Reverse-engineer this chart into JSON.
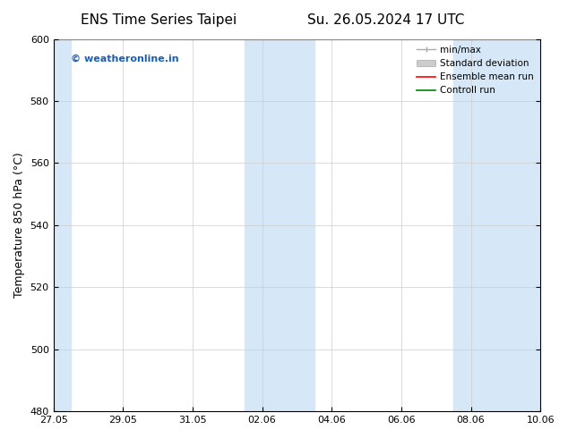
{
  "title_left": "ENS Time Series Taipei",
  "title_right": "Su. 26.05.2024 17 UTC",
  "ylabel": "Temperature 850 hPa (°C)",
  "ylim": [
    480,
    600
  ],
  "yticks": [
    480,
    500,
    520,
    540,
    560,
    580,
    600
  ],
  "xtick_labels": [
    "27.05",
    "29.05",
    "31.05",
    "02.06",
    "04.06",
    "06.06",
    "08.06",
    "10.06"
  ],
  "xtick_positions": [
    0,
    2,
    4,
    6,
    8,
    10,
    12,
    14
  ],
  "shaded_bands": [
    {
      "x_start": 0,
      "x_end": 0.5,
      "color": "#d6e8f7"
    },
    {
      "x_start": 5.5,
      "x_end": 7.5,
      "color": "#d6e8f7"
    },
    {
      "x_start": 11.5,
      "x_end": 14.0,
      "color": "#d6e8f7"
    }
  ],
  "watermark_text": "© weatheronline.in",
  "watermark_color": "#1a5fb4",
  "legend_items": [
    {
      "label": "min/max",
      "color": "#aaaaaa",
      "style": "line"
    },
    {
      "label": "Standard deviation",
      "color": "#cccccc",
      "style": "band"
    },
    {
      "label": "Ensemble mean run",
      "color": "red",
      "style": "line"
    },
    {
      "label": "Controll run",
      "color": "green",
      "style": "line"
    }
  ],
  "background_color": "#ffffff",
  "plot_bg_color": "#ffffff",
  "grid_color": "#cccccc",
  "tick_direction": "in",
  "title_fontsize": 11,
  "label_fontsize": 9,
  "tick_fontsize": 8
}
